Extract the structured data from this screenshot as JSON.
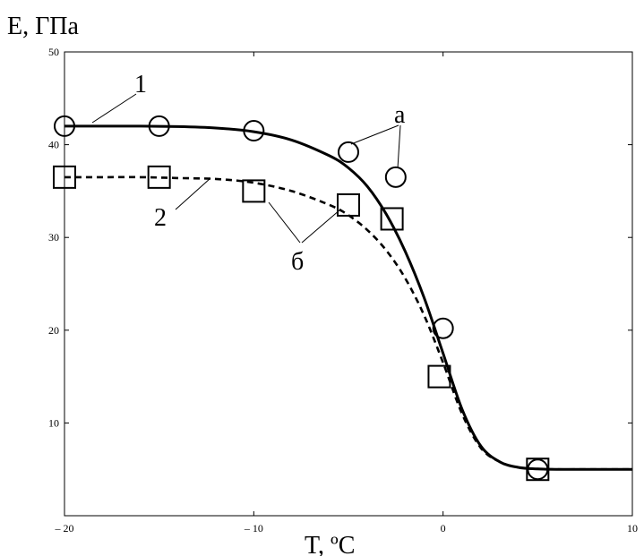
{
  "chart_data": {
    "type": "line",
    "ylabel": "E, ГПа",
    "xlabel": "T, ºC",
    "xlim": [
      -20,
      10
    ],
    "ylim": [
      0,
      50
    ],
    "x_ticks": [
      -20,
      -10,
      0,
      10
    ],
    "x_tick_labels": [
      "– 20",
      "– 10",
      "0",
      "10"
    ],
    "y_ticks": [
      10,
      20,
      30,
      40,
      50
    ],
    "y_tick_labels": [
      "10",
      "20",
      "30",
      "40",
      "50"
    ],
    "grid": false,
    "series": [
      {
        "name": "1",
        "style": "solid",
        "color": "#000000",
        "x": [
          -20,
          -18,
          -16,
          -14,
          -12,
          -10,
          -8,
          -6,
          -5,
          -4,
          -3,
          -2,
          -1,
          0,
          1,
          2,
          3,
          4,
          5,
          6,
          8,
          10
        ],
        "y": [
          42,
          42,
          42,
          41.95,
          41.8,
          41.4,
          40.5,
          38.8,
          37.5,
          35.5,
          32.5,
          28.5,
          23.5,
          17.5,
          11.5,
          7.5,
          5.8,
          5.2,
          5.05,
          5,
          5,
          5
        ]
      },
      {
        "name": "2",
        "style": "dashed",
        "color": "#000000",
        "x": [
          -20,
          -18,
          -16,
          -14,
          -12,
          -10,
          -8,
          -6,
          -5,
          -4,
          -3,
          -2,
          -1,
          0,
          1,
          2,
          3,
          4,
          5,
          6,
          8,
          10
        ],
        "y": [
          36.5,
          36.5,
          36.5,
          36.4,
          36.3,
          35.9,
          35.0,
          33.5,
          32.4,
          30.8,
          28.6,
          25.6,
          21.6,
          16.5,
          11.0,
          7.3,
          5.8,
          5.2,
          5.05,
          5,
          5,
          5
        ]
      }
    ],
    "points": [
      {
        "name": "а",
        "marker": "circle",
        "x": [
          -20,
          -15,
          -10,
          -5,
          -2.5,
          0,
          5
        ],
        "y": [
          42,
          42,
          41.5,
          39.2,
          36.5,
          20.2,
          5
        ]
      },
      {
        "name": "б",
        "marker": "square",
        "x": [
          -20,
          -15,
          -10,
          -5,
          -2.7,
          -0.2,
          5
        ],
        "y": [
          36.5,
          36.5,
          35,
          33.5,
          32,
          15,
          5
        ]
      }
    ],
    "annotations": [
      {
        "text": "1",
        "points_to": "series-1"
      },
      {
        "text": "2",
        "points_to": "series-2"
      },
      {
        "text": "а",
        "points_to": "circle markers"
      },
      {
        "text": "б",
        "points_to": "square markers"
      }
    ]
  }
}
